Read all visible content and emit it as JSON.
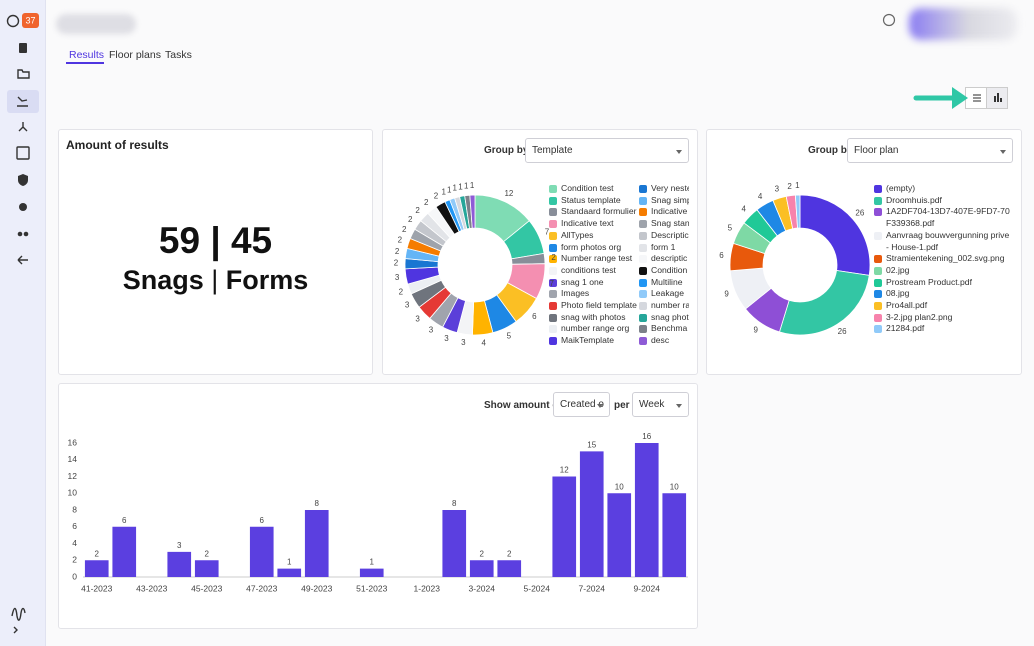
{
  "sidebar": {
    "badge": "37"
  },
  "tabs": [
    "Results",
    "Floor plans",
    "Tasks"
  ],
  "summary": {
    "title": "Amount of results",
    "snags": 59,
    "separator": "|",
    "forms": 45,
    "snags_label": "Snags",
    "forms_label": "Forms"
  },
  "chart_data": [
    {
      "type": "pie",
      "donut": true,
      "group_by_label": "Group by",
      "group_by": "Template",
      "categories": [
        "Condition test",
        "Status template",
        "Standaard formulier",
        "Indicative text",
        "AllTypes",
        "form photos org",
        "Number range test",
        "conditions test",
        "snag 1 one",
        "Images",
        "Photo field template",
        "snag with photos",
        "number range org",
        "MaikTemplate",
        "Very neste",
        "Snag simp",
        "Indicative",
        "Snag stan",
        "Descriptic",
        "form 1",
        "descriptic",
        "Condition",
        "Multiline",
        "Leakage",
        "number ra",
        "snag phot",
        "Benchma",
        "desc"
      ],
      "values": [
        12,
        7,
        2,
        7,
        6,
        5,
        4,
        3,
        3,
        3,
        3,
        3,
        2,
        3,
        2,
        2,
        2,
        2,
        2,
        2,
        2,
        2,
        1,
        1,
        1,
        1,
        1,
        1
      ],
      "colors": [
        "#7fdcb4",
        "#33c6a4",
        "#888e99",
        "#f48fb1",
        "#fbbf24",
        "#1e88e5",
        "#ffb300",
        "#f3f4f6",
        "#5b3fd9",
        "#a0a4ad",
        "#e53935",
        "#6f747d",
        "#eceff3",
        "#4f35e0",
        "#1976d2",
        "#64b5f6",
        "#f57c00",
        "#9ea3ab",
        "#c3c6cc",
        "#e2e4e8",
        "#f6f7f9",
        "#111111",
        "#2196f3",
        "#90caf9",
        "#d5d8de",
        "#26a69a",
        "#7b8089",
        "#8e5bd6"
      ]
    },
    {
      "type": "pie",
      "donut": true,
      "group_by_label": "Group by",
      "group_by": "Floor plan",
      "categories": [
        "(empty)",
        "Droomhuis.pdf",
        "1A2DF704-13D7-407E-9FD7-70F339368.pdf",
        "Aanvraag bouwvergunning prive - House-1.pdf",
        "Stramientekening_002.svg.png",
        "02.jpg",
        "Prostream Product.pdf",
        "08.jpg",
        "Pro4all.pdf",
        "3-2.jpg plan2.png",
        "21284.pdf"
      ],
      "values": [
        26,
        26,
        9,
        9,
        6,
        5,
        4,
        4,
        3,
        2,
        1
      ],
      "colors": [
        "#4f35e0",
        "#33c6a4",
        "#8e4fd6",
        "#eef0f5",
        "#e8590c",
        "#7ed9a5",
        "#20c997",
        "#1e88e5",
        "#fbbf24",
        "#f783ac",
        "#90caf9"
      ]
    },
    {
      "type": "bar",
      "show_label": "Show amount of",
      "show_value": "Created o",
      "per_label": "per",
      "per_value": "Week",
      "categories": [
        "41-2023",
        null,
        "43-2023",
        null,
        "45-2023",
        null,
        "47-2023",
        null,
        "49-2023",
        null,
        "51-2023",
        null,
        "1-2023",
        null,
        "3-2024",
        null,
        "5-2024",
        null,
        "7-2024",
        null,
        "9-2024",
        null
      ],
      "values": [
        2,
        6,
        null,
        3,
        2,
        null,
        6,
        1,
        8,
        null,
        1,
        null,
        null,
        8,
        2,
        2,
        null,
        12,
        15,
        10,
        16,
        10
      ],
      "color": "#5b3fe0",
      "ylim": [
        0,
        16
      ],
      "yticks": [
        0,
        2,
        4,
        6,
        8,
        10,
        12,
        14,
        16
      ]
    }
  ]
}
